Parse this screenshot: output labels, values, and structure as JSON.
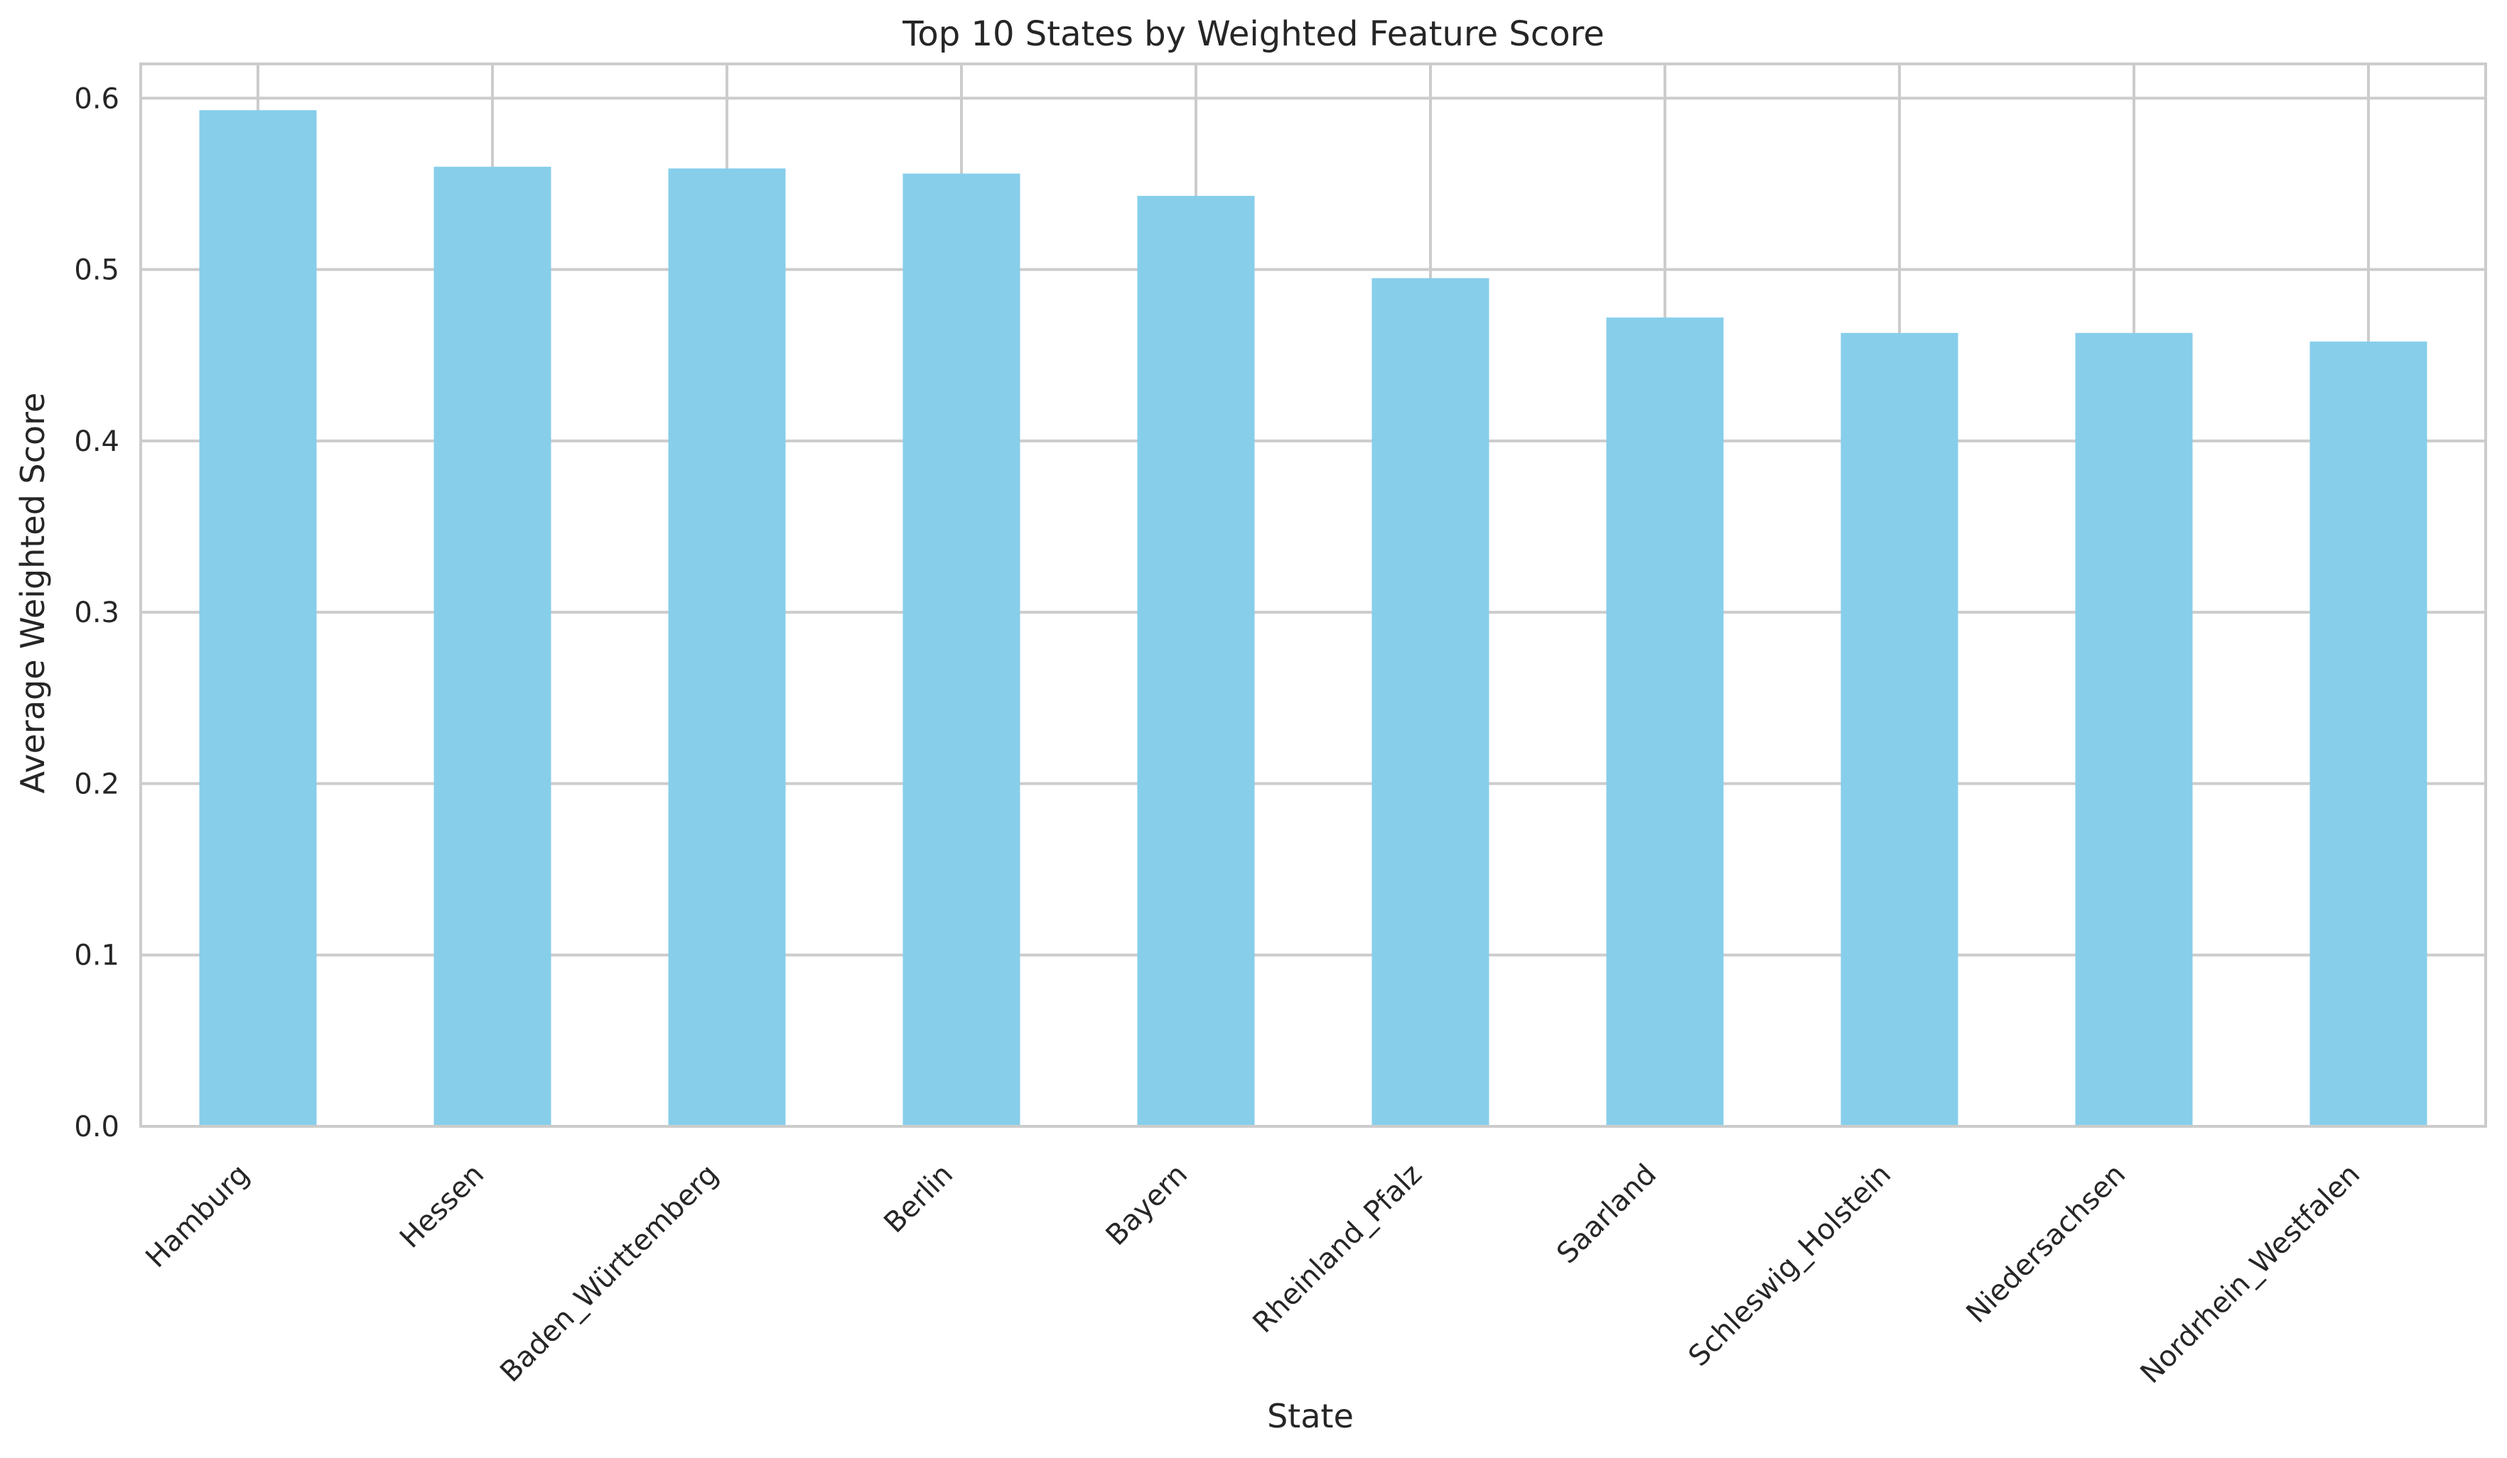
{
  "chart_data": {
    "type": "bar",
    "title": "Top 10 States by Weighted Feature Score",
    "xlabel": "State",
    "ylabel": "Average Weighted Score",
    "categories": [
      "Hamburg",
      "Hessen",
      "Baden_Württemberg",
      "Berlin",
      "Bayern",
      "Rheinland_Pfalz",
      "Saarland",
      "Schleswig_Holstein",
      "Niedersachsen",
      "Nordrhein_Westfalen"
    ],
    "values": [
      0.593,
      0.56,
      0.559,
      0.556,
      0.543,
      0.495,
      0.472,
      0.463,
      0.463,
      0.458
    ],
    "ylim": [
      0,
      0.62
    ],
    "yticks": [
      "0.0",
      "0.1",
      "0.2",
      "0.3",
      "0.4",
      "0.5",
      "0.6"
    ],
    "grid": true,
    "legend": "none",
    "colors": {
      "bar": "#87ceeb",
      "grid": "#cccccc",
      "frame": "#cccccc",
      "text": "#262626",
      "background": "#ffffff"
    }
  }
}
